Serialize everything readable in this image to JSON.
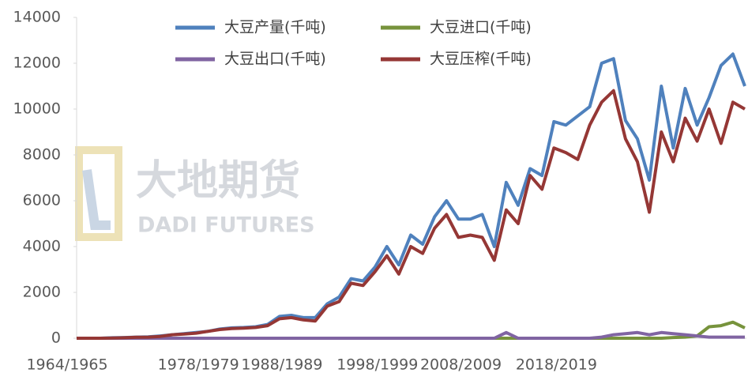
{
  "chart_data": {
    "type": "line",
    "watermark": {
      "name": "大地期货",
      "name_en": "DADI FUTURES"
    },
    "categories": [
      "1964/1965",
      null,
      null,
      null,
      null,
      null,
      null,
      null,
      null,
      null,
      null,
      "1978/1979",
      null,
      null,
      null,
      null,
      null,
      null,
      "1988/1989",
      null,
      null,
      null,
      null,
      null,
      null,
      null,
      "1998/1999",
      null,
      null,
      null,
      null,
      null,
      null,
      "2008/2009",
      null,
      null,
      null,
      null,
      null,
      null,
      null,
      "2018/2019",
      null,
      null,
      null,
      null,
      null,
      null,
      null,
      null,
      null,
      null,
      null,
      null,
      null,
      null,
      null
    ],
    "series": [
      {
        "name": "大豆产量(千吨)",
        "color": "#4f81bd",
        "values": [
          0,
          0,
          0,
          20,
          30,
          50,
          60,
          100,
          150,
          200,
          250,
          300,
          400,
          450,
          470,
          500,
          600,
          950,
          1000,
          900,
          900,
          1500,
          1800,
          2600,
          2500,
          3100,
          4000,
          3200,
          4500,
          4100,
          5300,
          6000,
          5200,
          5200,
          5400,
          4000,
          6800,
          5800,
          7400,
          7100,
          9450,
          9300,
          9700,
          10100,
          12000,
          12200,
          9500,
          8700,
          6900,
          11000,
          8300,
          10900,
          9300,
          10500,
          11900,
          12400,
          11000
        ]
      },
      {
        "name": "大豆进口(千吨)",
        "color": "#77933c",
        "values": [
          0,
          0,
          0,
          0,
          0,
          0,
          0,
          0,
          0,
          0,
          0,
          0,
          0,
          0,
          0,
          0,
          0,
          0,
          0,
          0,
          0,
          0,
          0,
          0,
          0,
          0,
          0,
          0,
          0,
          0,
          0,
          0,
          0,
          0,
          0,
          0,
          0,
          0,
          0,
          0,
          0,
          0,
          0,
          0,
          0,
          0,
          0,
          0,
          0,
          0,
          30,
          50,
          100,
          500,
          550,
          700,
          450
        ]
      },
      {
        "name": "大豆出口(千吨)",
        "color": "#8064a2",
        "values": [
          0,
          0,
          0,
          0,
          0,
          0,
          0,
          0,
          0,
          0,
          0,
          0,
          0,
          0,
          0,
          0,
          0,
          0,
          0,
          0,
          0,
          0,
          0,
          0,
          0,
          0,
          0,
          0,
          0,
          0,
          0,
          0,
          0,
          0,
          0,
          0,
          250,
          0,
          0,
          0,
          0,
          0,
          0,
          0,
          50,
          150,
          200,
          250,
          150,
          250,
          200,
          150,
          100,
          50,
          50,
          50,
          50
        ]
      },
      {
        "name": "大豆压榨(千吨)",
        "color": "#953735",
        "values": [
          0,
          0,
          0,
          10,
          20,
          40,
          50,
          80,
          150,
          180,
          220,
          300,
          380,
          420,
          440,
          470,
          550,
          850,
          900,
          800,
          750,
          1400,
          1600,
          2400,
          2300,
          2900,
          3600,
          2800,
          4000,
          3700,
          4800,
          5400,
          4400,
          4500,
          4400,
          3400,
          5600,
          5000,
          7100,
          6500,
          8300,
          8100,
          7800,
          9300,
          10300,
          10800,
          8700,
          7700,
          5500,
          9000,
          7700,
          9600,
          8600,
          10000,
          8500,
          10300,
          10000
        ]
      }
    ],
    "ylim": [
      0,
      14000
    ],
    "yticks": [
      0,
      2000,
      4000,
      6000,
      8000,
      10000,
      12000,
      14000
    ],
    "grid": false
  }
}
